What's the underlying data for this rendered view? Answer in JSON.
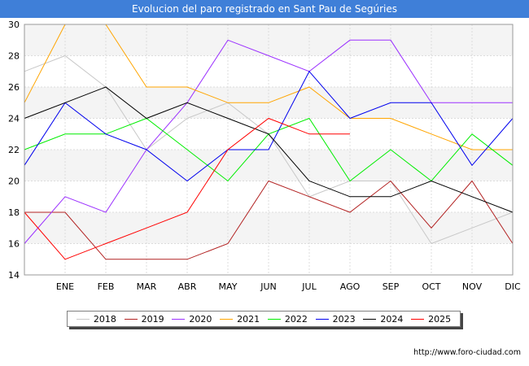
{
  "header": {
    "title": "Evolucion del paro registrado en Sant Pau de Segúries"
  },
  "source": "http://www.foro-ciudad.com",
  "chart_data": {
    "type": "line",
    "title": "Evolucion del paro registrado en Sant Pau de Segúries",
    "xlabel": "",
    "ylabel": "",
    "categories": [
      "",
      "ENE",
      "FEB",
      "MAR",
      "ABR",
      "MAY",
      "JUN",
      "JUL",
      "AGO",
      "SEP",
      "OCT",
      "NOV",
      "DIC"
    ],
    "ylim": [
      14,
      30
    ],
    "yticks": [
      14,
      16,
      18,
      20,
      22,
      24,
      26,
      28,
      30
    ],
    "grid": true,
    "legend_position": "bottom",
    "series": [
      {
        "name": "2018",
        "color": "#c8c8c8",
        "values": [
          27,
          28,
          26,
          22,
          24,
          25,
          23,
          19,
          20,
          20,
          16,
          17,
          18
        ]
      },
      {
        "name": "2019",
        "color": "#b22222",
        "values": [
          18,
          18,
          15,
          15,
          15,
          16,
          20,
          19,
          18,
          20,
          17,
          20,
          16
        ]
      },
      {
        "name": "2020",
        "color": "#9b30ff",
        "values": [
          16,
          19,
          18,
          22,
          25,
          29,
          28,
          27,
          29,
          29,
          25,
          25,
          25
        ]
      },
      {
        "name": "2021",
        "color": "#ffa500",
        "values": [
          25,
          30,
          30,
          26,
          26,
          25,
          25,
          26,
          24,
          24,
          23,
          22,
          22
        ]
      },
      {
        "name": "2022",
        "color": "#00ee00",
        "values": [
          22,
          23,
          23,
          24,
          22,
          20,
          23,
          24,
          20,
          22,
          20,
          23,
          21
        ]
      },
      {
        "name": "2023",
        "color": "#0000ee",
        "values": [
          21,
          25,
          23,
          22,
          20,
          22,
          22,
          27,
          24,
          25,
          25,
          21,
          24
        ]
      },
      {
        "name": "2024",
        "color": "#000000",
        "values": [
          24,
          25,
          26,
          24,
          25,
          24,
          23,
          20,
          19,
          19,
          20,
          19,
          18
        ]
      },
      {
        "name": "2025",
        "color": "#ff0000",
        "values": [
          18,
          15,
          16,
          17,
          18,
          22,
          24,
          23,
          23,
          null,
          null,
          null,
          null
        ]
      }
    ]
  }
}
